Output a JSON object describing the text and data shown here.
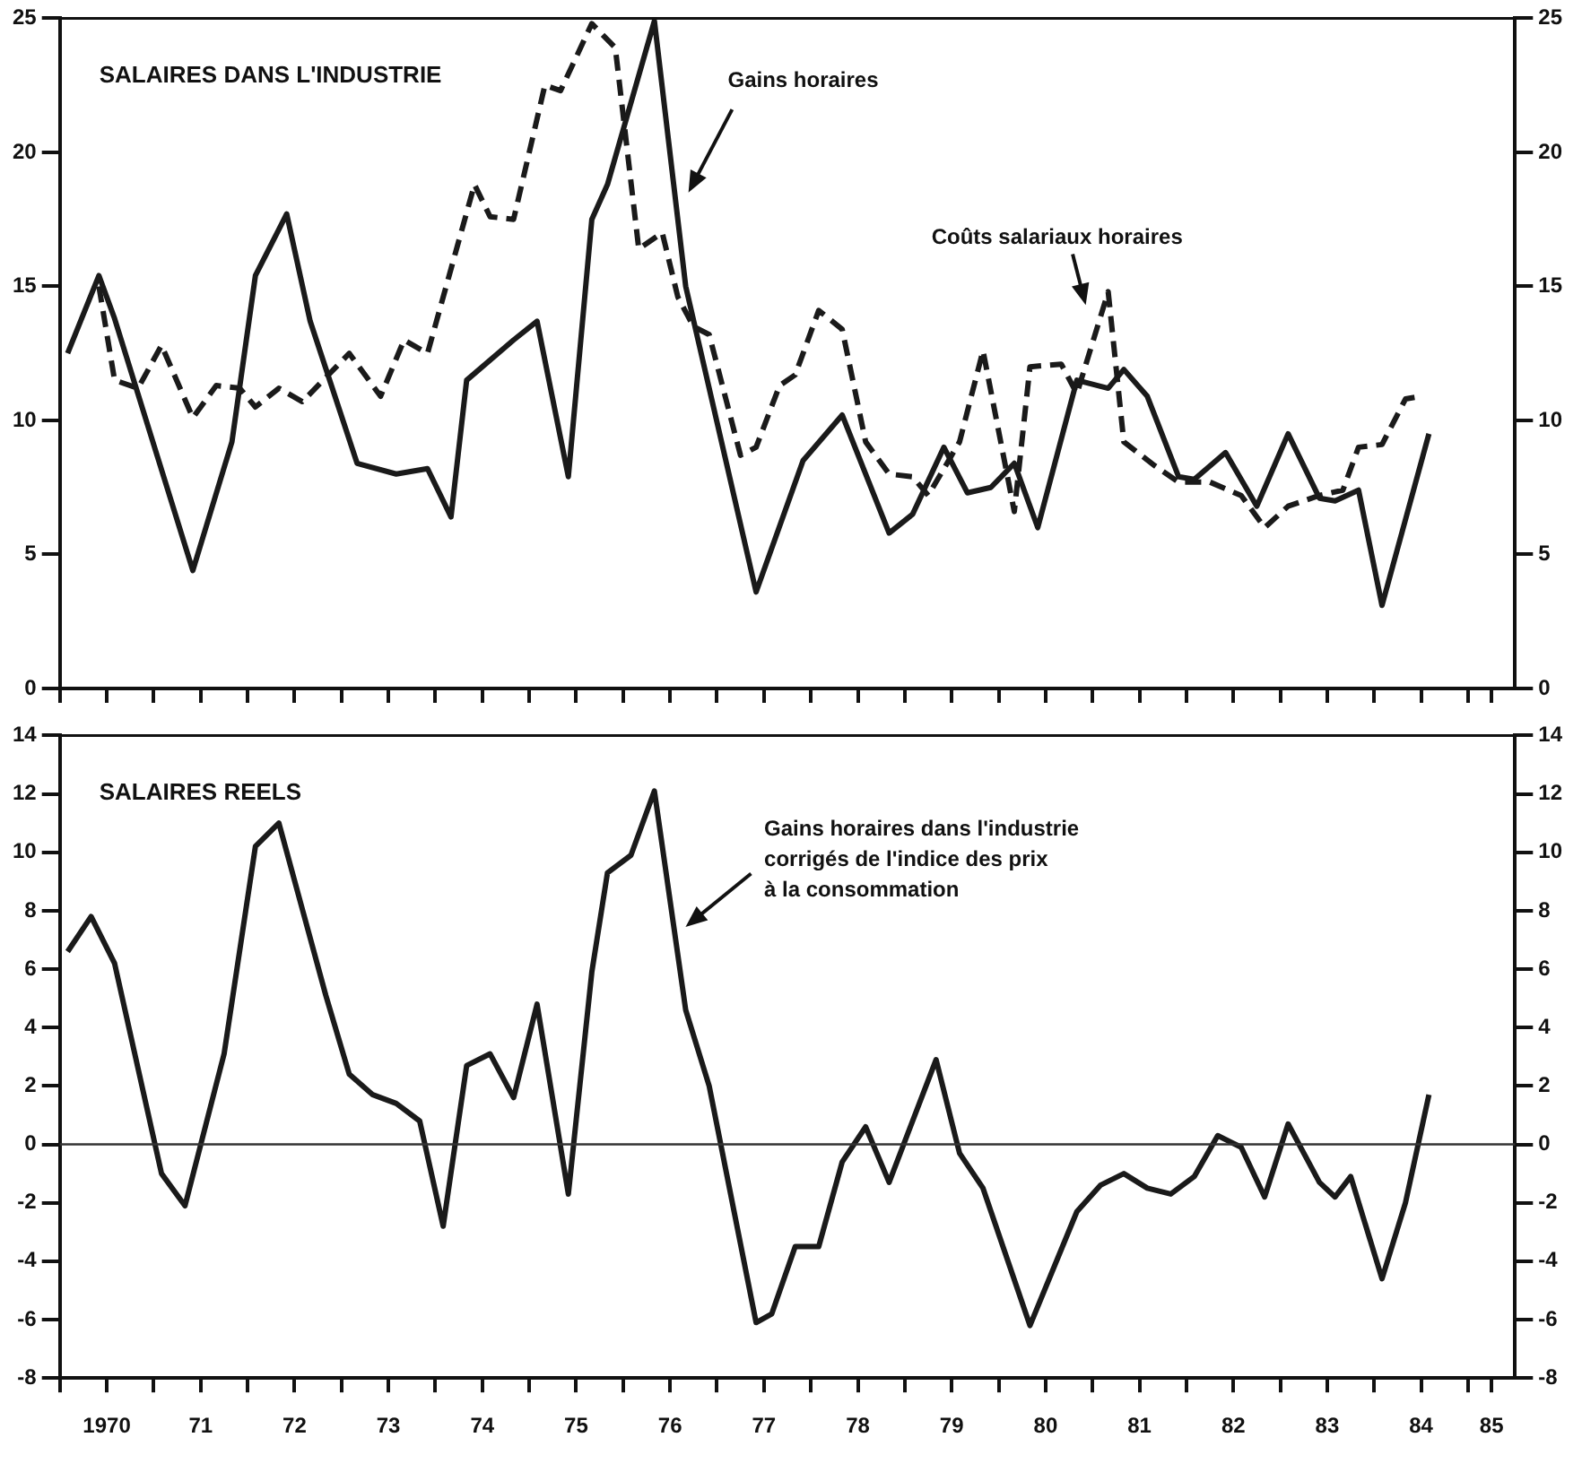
{
  "chart_data": [
    {
      "type": "line",
      "title": "SALAIRES DANS L'INDUSTRIE",
      "xlim": [
        "1970-01",
        "1985-07"
      ],
      "xticks": [
        {
          "value": "1970-01",
          "label": null
        },
        {
          "value": "1970-07",
          "label": null
        },
        {
          "value": "1971-01",
          "label": null
        },
        {
          "value": "1971-07",
          "label": null
        },
        {
          "value": "1972-01",
          "label": null
        },
        {
          "value": "1972-07",
          "label": null
        },
        {
          "value": "1973-01",
          "label": null
        },
        {
          "value": "1973-07",
          "label": null
        },
        {
          "value": "1974-01",
          "label": null
        },
        {
          "value": "1974-07",
          "label": null
        },
        {
          "value": "1975-01",
          "label": null
        },
        {
          "value": "1975-07",
          "label": null
        },
        {
          "value": "1976-01",
          "label": null
        },
        {
          "value": "1976-07",
          "label": null
        },
        {
          "value": "1977-01",
          "label": null
        },
        {
          "value": "1977-07",
          "label": null
        },
        {
          "value": "1978-01",
          "label": null
        },
        {
          "value": "1978-07",
          "label": null
        },
        {
          "value": "1979-01",
          "label": null
        },
        {
          "value": "1979-07",
          "label": null
        },
        {
          "value": "1980-01",
          "label": null
        },
        {
          "value": "1980-07",
          "label": null
        },
        {
          "value": "1981-01",
          "label": null
        },
        {
          "value": "1981-07",
          "label": null
        },
        {
          "value": "1982-01",
          "label": null
        },
        {
          "value": "1982-07",
          "label": null
        },
        {
          "value": "1983-01",
          "label": null
        },
        {
          "value": "1983-07",
          "label": null
        },
        {
          "value": "1984-01",
          "label": null
        },
        {
          "value": "1984-07",
          "label": null
        },
        {
          "value": "1985-01",
          "label": null
        },
        {
          "value": "1985-04",
          "label": null
        }
      ],
      "ylim": [
        0,
        25
      ],
      "yticks": [
        0,
        5,
        10,
        15,
        20,
        25
      ],
      "y2lim": [
        0,
        25
      ],
      "y2ticks": [
        0,
        5,
        10,
        15,
        20,
        25
      ],
      "tick_labels": "y",
      "grid": false,
      "legend": false,
      "marker": "none",
      "series": [
        {
          "color": "#1a1a1a",
          "line_style": "solid",
          "x": [
            "1970-02",
            "1970-06",
            "1970-08",
            "1971-06",
            "1971-11",
            "1972-02",
            "1972-06",
            "1972-09",
            "1973-03",
            "1973-08",
            "1973-12",
            "1974-03",
            "1974-05",
            "1974-11",
            "1975-02",
            "1975-06",
            "1975-09",
            "1975-11",
            "1976-05",
            "1976-09",
            "1977-06",
            "1977-12",
            "1978-05",
            "1978-11",
            "1979-02",
            "1979-06",
            "1979-09",
            "1979-12",
            "1980-03",
            "1980-06",
            "1980-11",
            "1981-03",
            "1981-05",
            "1981-08",
            "1981-12",
            "1982-02",
            "1982-06",
            "1982-10",
            "1983-02",
            "1983-06",
            "1983-08",
            "1983-11",
            "1984-02",
            "1984-08"
          ],
          "values": [
            12.5,
            15.4,
            13.8,
            4.4,
            9.2,
            15.4,
            17.7,
            13.7,
            8.4,
            8.0,
            8.2,
            6.4,
            11.5,
            13.0,
            13.7,
            7.9,
            17.5,
            18.8,
            24.9,
            15.0,
            3.6,
            8.5,
            10.2,
            5.8,
            6.5,
            9.0,
            7.3,
            7.5,
            8.4,
            6.0,
            11.5,
            11.2,
            11.9,
            10.9,
            7.9,
            7.8,
            8.8,
            6.8,
            9.5,
            7.1,
            7.0,
            7.4,
            3.1,
            9.5
          ]
        },
        {
          "color": "#1a1a1a",
          "line_style": "dashed",
          "x": [
            "1970-06",
            "1970-08",
            "1970-11",
            "1971-02",
            "1971-06",
            "1971-09",
            "1971-12",
            "1972-02",
            "1972-05",
            "1972-08",
            "1973-02",
            "1973-06",
            "1973-09",
            "1973-12",
            "1974-06",
            "1974-08",
            "1974-11",
            "1975-03",
            "1975-05",
            "1975-09",
            "1975-12",
            "1976-03",
            "1976-06",
            "1976-08",
            "1976-10",
            "1976-12",
            "1977-04",
            "1977-06",
            "1977-09",
            "1977-11",
            "1978-02",
            "1978-05",
            "1978-08",
            "1978-11",
            "1979-02",
            "1979-04",
            "1979-08",
            "1979-11",
            "1980-03",
            "1980-05",
            "1980-09",
            "1980-11",
            "1981-03",
            "1981-05",
            "1981-09",
            "1981-12",
            "1982-04",
            "1982-08",
            "1982-11",
            "1983-02",
            "1983-06",
            "1983-09",
            "1983-11",
            "1984-02",
            "1984-05",
            "1984-07"
          ],
          "values": [
            15.0,
            11.5,
            11.2,
            12.8,
            10.1,
            11.3,
            11.2,
            10.5,
            11.2,
            10.7,
            12.5,
            10.9,
            13.0,
            12.5,
            18.8,
            17.6,
            17.5,
            22.5,
            22.3,
            24.8,
            23.9,
            16.4,
            17.0,
            14.6,
            13.5,
            13.2,
            8.7,
            9.0,
            11.3,
            11.7,
            14.1,
            13.4,
            9.2,
            8.0,
            7.9,
            7.2,
            9.2,
            12.6,
            6.6,
            12.0,
            12.1,
            11.0,
            14.8,
            9.2,
            8.3,
            7.7,
            7.7,
            7.2,
            6.0,
            6.8,
            7.2,
            7.4,
            9.0,
            9.1,
            10.8,
            10.9
          ]
        }
      ],
      "annotations": [
        "Gains horaires",
        "Coûts salariaux horaires"
      ]
    },
    {
      "type": "line",
      "title": "SALAIRES REELS",
      "xlim": [
        "1970-01",
        "1985-07"
      ],
      "xticks": [
        {
          "value": "1970-01",
          "label": null
        },
        {
          "value": "1970-07",
          "label": "1970"
        },
        {
          "value": "1971-01",
          "label": null
        },
        {
          "value": "1971-07",
          "label": "71"
        },
        {
          "value": "1972-01",
          "label": null
        },
        {
          "value": "1972-07",
          "label": "72"
        },
        {
          "value": "1973-01",
          "label": null
        },
        {
          "value": "1973-07",
          "label": "73"
        },
        {
          "value": "1974-01",
          "label": null
        },
        {
          "value": "1974-07",
          "label": "74"
        },
        {
          "value": "1975-01",
          "label": null
        },
        {
          "value": "1975-07",
          "label": "75"
        },
        {
          "value": "1976-01",
          "label": null
        },
        {
          "value": "1976-07",
          "label": "76"
        },
        {
          "value": "1977-01",
          "label": null
        },
        {
          "value": "1977-07",
          "label": "77"
        },
        {
          "value": "1978-01",
          "label": null
        },
        {
          "value": "1978-07",
          "label": "78"
        },
        {
          "value": "1979-01",
          "label": null
        },
        {
          "value": "1979-07",
          "label": "79"
        },
        {
          "value": "1980-01",
          "label": null
        },
        {
          "value": "1980-07",
          "label": "80"
        },
        {
          "value": "1981-01",
          "label": null
        },
        {
          "value": "1981-07",
          "label": "81"
        },
        {
          "value": "1982-01",
          "label": null
        },
        {
          "value": "1982-07",
          "label": "82"
        },
        {
          "value": "1983-01",
          "label": null
        },
        {
          "value": "1983-07",
          "label": "83"
        },
        {
          "value": "1984-01",
          "label": null
        },
        {
          "value": "1984-07",
          "label": "84"
        },
        {
          "value": "1985-01",
          "label": null
        },
        {
          "value": "1985-04",
          "label": "85"
        }
      ],
      "ylim": [
        -8,
        14
      ],
      "yticks": [
        -8,
        -6,
        -4,
        -2,
        0,
        2,
        4,
        6,
        8,
        10,
        12,
        14
      ],
      "y2lim": [
        -8,
        14
      ],
      "y2ticks": [
        -8,
        -6,
        -4,
        -2,
        0,
        2,
        4,
        6,
        8,
        10,
        12,
        14
      ],
      "grid": false,
      "legend": false,
      "marker": "none",
      "ref_lines": [
        {
          "axis": "y",
          "value": 0,
          "color": "#333333",
          "line_style": "solid"
        }
      ],
      "series": [
        {
          "color": "#1a1a1a",
          "line_style": "solid",
          "x": [
            "1970-02",
            "1970-05",
            "1970-08",
            "1971-02",
            "1971-05",
            "1971-10",
            "1972-02",
            "1972-05",
            "1972-11",
            "1973-02",
            "1973-05",
            "1973-08",
            "1973-11",
            "1974-02",
            "1974-05",
            "1974-08",
            "1974-11",
            "1975-02",
            "1975-06",
            "1975-09",
            "1975-11",
            "1976-02",
            "1976-05",
            "1976-09",
            "1976-12",
            "1977-06",
            "1977-08",
            "1977-11",
            "1978-02",
            "1978-05",
            "1978-08",
            "1978-11",
            "1979-05",
            "1979-08",
            "1979-11",
            "1980-05",
            "1980-11",
            "1981-02",
            "1981-05",
            "1981-08",
            "1981-11",
            "1982-02",
            "1982-05",
            "1982-08",
            "1982-11",
            "1983-02",
            "1983-06",
            "1983-08",
            "1983-10",
            "1984-02",
            "1984-05",
            "1984-08"
          ],
          "values": [
            6.6,
            7.8,
            6.2,
            -1.0,
            -2.1,
            3.1,
            10.2,
            11.0,
            5.1,
            2.4,
            1.7,
            1.4,
            0.8,
            -2.8,
            2.7,
            3.1,
            1.6,
            4.8,
            -1.7,
            5.9,
            9.3,
            9.9,
            12.1,
            4.6,
            2.0,
            -6.1,
            -5.8,
            -3.5,
            -3.5,
            -0.6,
            0.6,
            -1.3,
            2.9,
            -0.3,
            -1.5,
            -6.2,
            -2.3,
            -1.4,
            -1.0,
            -1.5,
            -1.7,
            -1.1,
            0.3,
            -0.1,
            -1.8,
            0.7,
            -1.3,
            -1.8,
            -1.1,
            -4.6,
            -2.0,
            1.7
          ]
        }
      ],
      "annotations": [
        "Gains horaires dans l'industrie\ncorrigés de l'indice des prix\nà la consommation"
      ]
    }
  ]
}
